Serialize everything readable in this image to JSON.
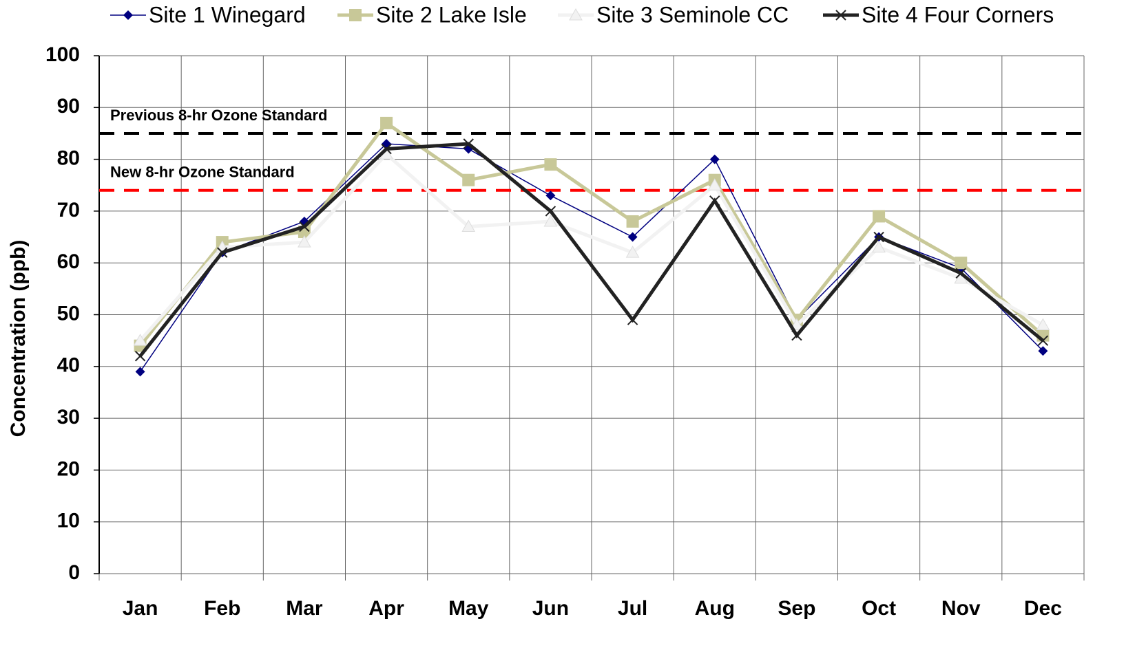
{
  "chart_data": {
    "type": "line",
    "y_label": "Concentration (ppb)",
    "categories": [
      "Jan",
      "Feb",
      "Mar",
      "Apr",
      "May",
      "Jun",
      "Jul",
      "Aug",
      "Sep",
      "Oct",
      "Nov",
      "Dec"
    ],
    "series": [
      {
        "name": "Site 1 Winegard",
        "color": "#000080",
        "marker": "diamond",
        "values": [
          39,
          62,
          68,
          83,
          82,
          73,
          65,
          80,
          49,
          65,
          59,
          43
        ]
      },
      {
        "name": "Site 2 Lake Isle",
        "color": "#c8c898",
        "marker": "square",
        "values": [
          44,
          64,
          66,
          87,
          76,
          79,
          68,
          76,
          49,
          69,
          60,
          46
        ]
      },
      {
        "name": "Site 3 Seminole CC",
        "color": "#f2f2f2",
        "marker": "triangle",
        "values": [
          45,
          63,
          64,
          81,
          67,
          68,
          62,
          75,
          48,
          63,
          57,
          48
        ]
      },
      {
        "name": "Site 4 Four Corners",
        "color": "#222222",
        "marker": "x",
        "values": [
          42,
          62,
          67,
          82,
          83,
          70,
          49,
          72,
          46,
          65,
          58,
          45
        ]
      }
    ],
    "reference_lines": [
      {
        "label": "Previous 8-hr Ozone Standard",
        "value": 85,
        "color": "#000000"
      },
      {
        "label": "New 8-hr Ozone Standard",
        "value": 74,
        "color": "#ff0000"
      }
    ],
    "ylim": [
      0,
      100
    ],
    "yticks": [
      0,
      10,
      20,
      30,
      40,
      50,
      60,
      70,
      80,
      90,
      100
    ],
    "grid": true,
    "legend": "top"
  }
}
